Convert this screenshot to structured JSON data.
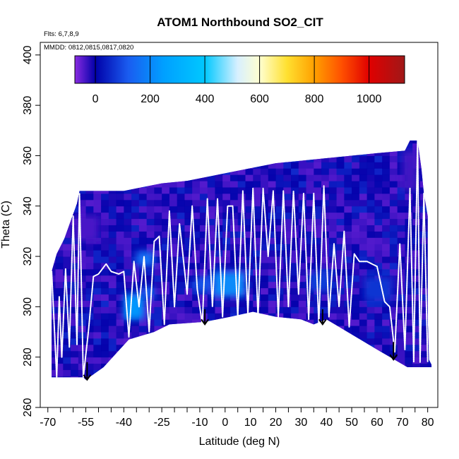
{
  "chart_data": {
    "type": "heatmap",
    "title": "ATOM1 Northbound SO2_CIT",
    "annotations": {
      "flights": "Flts: 6,7,8,9",
      "dates": "MMDD: 0812,0815,0817,0820"
    },
    "xlabel": "Latitude (deg N)",
    "ylabel": "Theta (C)",
    "xlim": [
      -73,
      84
    ],
    "ylim": [
      260,
      405
    ],
    "x_ticks": [
      -70,
      -55,
      -40,
      -25,
      -10,
      0,
      10,
      20,
      30,
      40,
      50,
      60,
      70,
      80
    ],
    "x_tick_labels": [
      "-70",
      "-55",
      "-40",
      "-25",
      "-10",
      "0",
      "10",
      "20",
      "30",
      "40",
      "50",
      "60",
      "70",
      "80"
    ],
    "x_minor_ticks": [
      -65,
      -60,
      -50,
      -45,
      -35,
      -30,
      -20,
      -15,
      -5,
      5,
      15,
      25,
      35,
      45,
      55,
      65,
      75,
      85
    ],
    "y_ticks": [
      260,
      280,
      300,
      320,
      340,
      360,
      380,
      400
    ],
    "y_tick_labels": [
      "260",
      "280",
      "300",
      "320",
      "340",
      "360",
      "380",
      "400"
    ],
    "colorbar": {
      "range": [
        -75,
        1130
      ],
      "ticks": [
        0,
        200,
        400,
        600,
        800,
        1000
      ],
      "tick_labels": [
        "0",
        "200",
        "400",
        "600",
        "800",
        "1000"
      ],
      "stops": [
        {
          "value": -75,
          "color": "#8a2be2"
        },
        {
          "value": 0,
          "color": "#0000a8"
        },
        {
          "value": 120,
          "color": "#1a5cf0"
        },
        {
          "value": 250,
          "color": "#00a0ff"
        },
        {
          "value": 400,
          "color": "#00c8ff"
        },
        {
          "value": 520,
          "color": "#d8f0ff"
        },
        {
          "value": 600,
          "color": "#ffffd0"
        },
        {
          "value": 700,
          "color": "#ffe030"
        },
        {
          "value": 800,
          "color": "#ffa000"
        },
        {
          "value": 900,
          "color": "#ff5000"
        },
        {
          "value": 1000,
          "color": "#e00000"
        },
        {
          "value": 1130,
          "color": "#a01818"
        }
      ]
    },
    "field_color": "#2a12c8",
    "region_top": [
      {
        "lat": -68.5,
        "theta": 314
      },
      {
        "lat": -66.5,
        "theta": 321
      },
      {
        "lat": -63.5,
        "theta": 327
      },
      {
        "lat": -61,
        "theta": 334
      },
      {
        "lat": -58.5,
        "theta": 341
      },
      {
        "lat": -57.5,
        "theta": 346
      },
      {
        "lat": -50,
        "theta": 346
      },
      {
        "lat": -40,
        "theta": 346
      },
      {
        "lat": -35,
        "theta": 347
      },
      {
        "lat": -25,
        "theta": 349
      },
      {
        "lat": -15,
        "theta": 350
      },
      {
        "lat": -5,
        "theta": 352
      },
      {
        "lat": 0,
        "theta": 353
      },
      {
        "lat": 10,
        "theta": 355
      },
      {
        "lat": 20,
        "theta": 357
      },
      {
        "lat": 30,
        "theta": 358
      },
      {
        "lat": 40,
        "theta": 359
      },
      {
        "lat": 50,
        "theta": 360
      },
      {
        "lat": 60,
        "theta": 361
      },
      {
        "lat": 71,
        "theta": 362
      },
      {
        "lat": 73,
        "theta": 366
      },
      {
        "lat": 76,
        "theta": 366
      },
      {
        "lat": 77.5,
        "theta": 355
      },
      {
        "lat": 78.5,
        "theta": 345
      },
      {
        "lat": 80,
        "theta": 336
      },
      {
        "lat": 80,
        "theta": 296
      },
      {
        "lat": 80.5,
        "theta": 279
      },
      {
        "lat": 81.5,
        "theta": 277
      }
    ],
    "region_bottom": [
      {
        "lat": -68.5,
        "theta": 272
      },
      {
        "lat": -56,
        "theta": 272
      },
      {
        "lat": -55,
        "theta": 271
      },
      {
        "lat": -48,
        "theta": 276
      },
      {
        "lat": -38,
        "theta": 287
      },
      {
        "lat": -28,
        "theta": 290
      },
      {
        "lat": -22,
        "theta": 293
      },
      {
        "lat": -8,
        "theta": 294
      },
      {
        "lat": 2,
        "theta": 296
      },
      {
        "lat": 11,
        "theta": 298
      },
      {
        "lat": 20,
        "theta": 296
      },
      {
        "lat": 30,
        "theta": 295
      },
      {
        "lat": 35,
        "theta": 293
      },
      {
        "lat": 40,
        "theta": 295
      },
      {
        "lat": 45,
        "theta": 292
      },
      {
        "lat": 60,
        "theta": 283
      },
      {
        "lat": 72,
        "theta": 276
      },
      {
        "lat": 81.5,
        "theta": 276
      }
    ],
    "enhanced_patches": [
      {
        "lat0": -40,
        "lat1": -32,
        "theta0": 295,
        "theta1": 305,
        "value": 230
      },
      {
        "lat0": -33,
        "lat1": -28,
        "theta0": 303,
        "theta1": 308,
        "value": 130
      },
      {
        "lat0": -35,
        "lat1": -28,
        "theta0": 316,
        "theta1": 322,
        "value": 160
      },
      {
        "lat0": -5,
        "lat1": 8,
        "theta0": 304,
        "theta1": 314,
        "value": 210
      },
      {
        "lat0": -12,
        "lat1": -5,
        "theta0": 306,
        "theta1": 312,
        "value": 110
      },
      {
        "lat0": 33,
        "lat1": 42,
        "theta0": 306,
        "theta1": 314,
        "value": 80
      },
      {
        "lat0": 55,
        "lat1": 66,
        "theta0": 302,
        "theta1": 312,
        "value": 70
      },
      {
        "lat0": -60,
        "lat1": -50,
        "theta0": 326,
        "theta1": 336,
        "value": -40
      },
      {
        "lat0": 70,
        "lat1": 76,
        "theta0": 346,
        "theta1": 362,
        "value": -35
      }
    ],
    "flight_track": [
      {
        "lat": -68.5,
        "theta": 314
      },
      {
        "lat": -66.5,
        "theta": 272
      },
      {
        "lat": -65.5,
        "theta": 304
      },
      {
        "lat": -64.5,
        "theta": 280
      },
      {
        "lat": -63,
        "theta": 315
      },
      {
        "lat": -61.5,
        "theta": 284
      },
      {
        "lat": -60,
        "theta": 336
      },
      {
        "lat": -58.5,
        "theta": 285
      },
      {
        "lat": -57.5,
        "theta": 345
      },
      {
        "lat": -56,
        "theta": 272
      },
      {
        "lat": -54,
        "theta": 290
      },
      {
        "lat": -52,
        "theta": 312
      },
      {
        "lat": -50,
        "theta": 313
      },
      {
        "lat": -47,
        "theta": 317
      },
      {
        "lat": -45,
        "theta": 314
      },
      {
        "lat": -42,
        "theta": 313
      },
      {
        "lat": -40,
        "theta": 314
      },
      {
        "lat": -38,
        "theta": 288
      },
      {
        "lat": -36,
        "theta": 318
      },
      {
        "lat": -34,
        "theta": 300
      },
      {
        "lat": -32,
        "theta": 320
      },
      {
        "lat": -30,
        "theta": 290
      },
      {
        "lat": -28,
        "theta": 326
      },
      {
        "lat": -26,
        "theta": 328
      },
      {
        "lat": -24,
        "theta": 293
      },
      {
        "lat": -22,
        "theta": 338
      },
      {
        "lat": -20,
        "theta": 300
      },
      {
        "lat": -18,
        "theta": 333
      },
      {
        "lat": -15,
        "theta": 305
      },
      {
        "lat": -13,
        "theta": 340
      },
      {
        "lat": -11,
        "theta": 307
      },
      {
        "lat": -9,
        "theta": 293
      },
      {
        "lat": -7,
        "theta": 343
      },
      {
        "lat": -5,
        "theta": 300
      },
      {
        "lat": -3,
        "theta": 343
      },
      {
        "lat": -1,
        "theta": 296
      },
      {
        "lat": 1,
        "theta": 340
      },
      {
        "lat": 3,
        "theta": 340
      },
      {
        "lat": 5,
        "theta": 296
      },
      {
        "lat": 7,
        "theta": 346
      },
      {
        "lat": 9,
        "theta": 297
      },
      {
        "lat": 11,
        "theta": 347
      },
      {
        "lat": 13,
        "theta": 296
      },
      {
        "lat": 15,
        "theta": 347
      },
      {
        "lat": 17,
        "theta": 320
      },
      {
        "lat": 19,
        "theta": 346
      },
      {
        "lat": 21,
        "theta": 296
      },
      {
        "lat": 23,
        "theta": 346
      },
      {
        "lat": 25,
        "theta": 300
      },
      {
        "lat": 27,
        "theta": 346
      },
      {
        "lat": 29,
        "theta": 305
      },
      {
        "lat": 31,
        "theta": 345
      },
      {
        "lat": 33,
        "theta": 295
      },
      {
        "lat": 35,
        "theta": 345
      },
      {
        "lat": 37,
        "theta": 293
      },
      {
        "lat": 39,
        "theta": 348
      },
      {
        "lat": 41,
        "theta": 296
      },
      {
        "lat": 43,
        "theta": 325
      },
      {
        "lat": 45,
        "theta": 300
      },
      {
        "lat": 47,
        "theta": 330
      },
      {
        "lat": 49,
        "theta": 292
      },
      {
        "lat": 51,
        "theta": 321
      },
      {
        "lat": 53,
        "theta": 318
      },
      {
        "lat": 56,
        "theta": 318
      },
      {
        "lat": 60,
        "theta": 316
      },
      {
        "lat": 63,
        "theta": 302
      },
      {
        "lat": 65,
        "theta": 300
      },
      {
        "lat": 67,
        "theta": 282
      },
      {
        "lat": 69,
        "theta": 325
      },
      {
        "lat": 71,
        "theta": 283
      },
      {
        "lat": 73,
        "theta": 347
      },
      {
        "lat": 74.5,
        "theta": 278
      },
      {
        "lat": 76,
        "theta": 366
      },
      {
        "lat": 77,
        "theta": 278
      },
      {
        "lat": 78.5,
        "theta": 345
      },
      {
        "lat": 80,
        "theta": 278
      }
    ],
    "arrows": [
      {
        "lat": -54.5,
        "theta_top": 278,
        "theta_bottom": 271
      },
      {
        "lat": -8,
        "theta_top": 299,
        "theta_bottom": 293
      },
      {
        "lat": 38.5,
        "theta_top": 299,
        "theta_bottom": 293
      },
      {
        "lat": 66.5,
        "theta_top": 286,
        "theta_bottom": 279
      }
    ]
  }
}
